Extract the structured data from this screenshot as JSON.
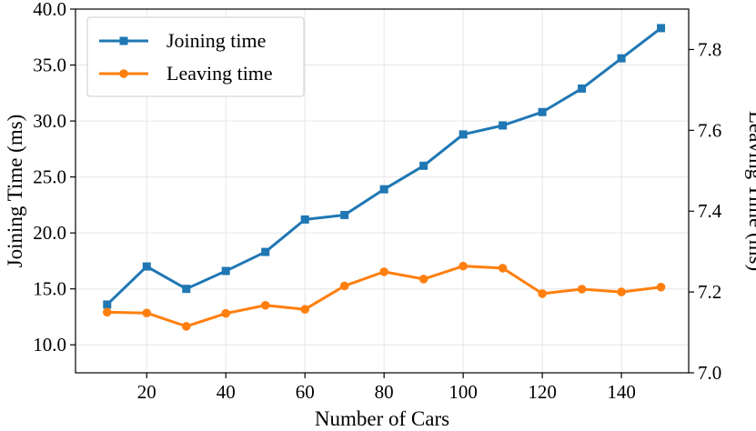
{
  "chart_data": {
    "type": "line",
    "title": "",
    "xlabel": "Number of Cars",
    "ylabel": "Joining Time (ms)",
    "ylabel_right": "Leaving Time (ms)",
    "grid": true,
    "legend_position": "top-left",
    "xlim": [
      2,
      157
    ],
    "ylim": [
      7.5,
      40
    ],
    "ylim_right": [
      7.0,
      7.9
    ],
    "x_ticks": [
      20,
      40,
      60,
      80,
      100,
      120,
      140
    ],
    "y_ticks": [
      10.0,
      15.0,
      20.0,
      25.0,
      30.0,
      35.0,
      40.0
    ],
    "y_ticks_right": [
      7.0,
      7.2,
      7.4,
      7.6,
      7.8
    ],
    "x_tick_labels": [
      "20",
      "40",
      "60",
      "80",
      "100",
      "120",
      "140"
    ],
    "y_tick_labels": [
      "10.0",
      "15.0",
      "20.0",
      "25.0",
      "30.0",
      "35.0",
      "40.0"
    ],
    "y_tick_labels_right": [
      "7.0",
      "7.2",
      "7.4",
      "7.6",
      "7.8"
    ],
    "x": [
      10,
      20,
      30,
      40,
      50,
      60,
      70,
      80,
      90,
      100,
      110,
      120,
      130,
      140,
      150
    ],
    "series": [
      {
        "name": "Joining time",
        "axis": "left",
        "marker": "square",
        "color": "#1f77b4",
        "values": [
          13.6,
          17.0,
          15.0,
          16.6,
          18.3,
          21.2,
          21.6,
          23.9,
          26.0,
          28.8,
          29.6,
          30.8,
          32.9,
          35.6,
          38.3
        ]
      },
      {
        "name": "Leaving time",
        "axis": "right",
        "marker": "circle",
        "color": "#ff7f0e",
        "values": [
          7.15,
          7.148,
          7.115,
          7.147,
          7.167,
          7.157,
          7.215,
          7.25,
          7.232,
          7.264,
          7.259,
          7.196,
          7.207,
          7.2,
          7.212
        ]
      }
    ]
  }
}
